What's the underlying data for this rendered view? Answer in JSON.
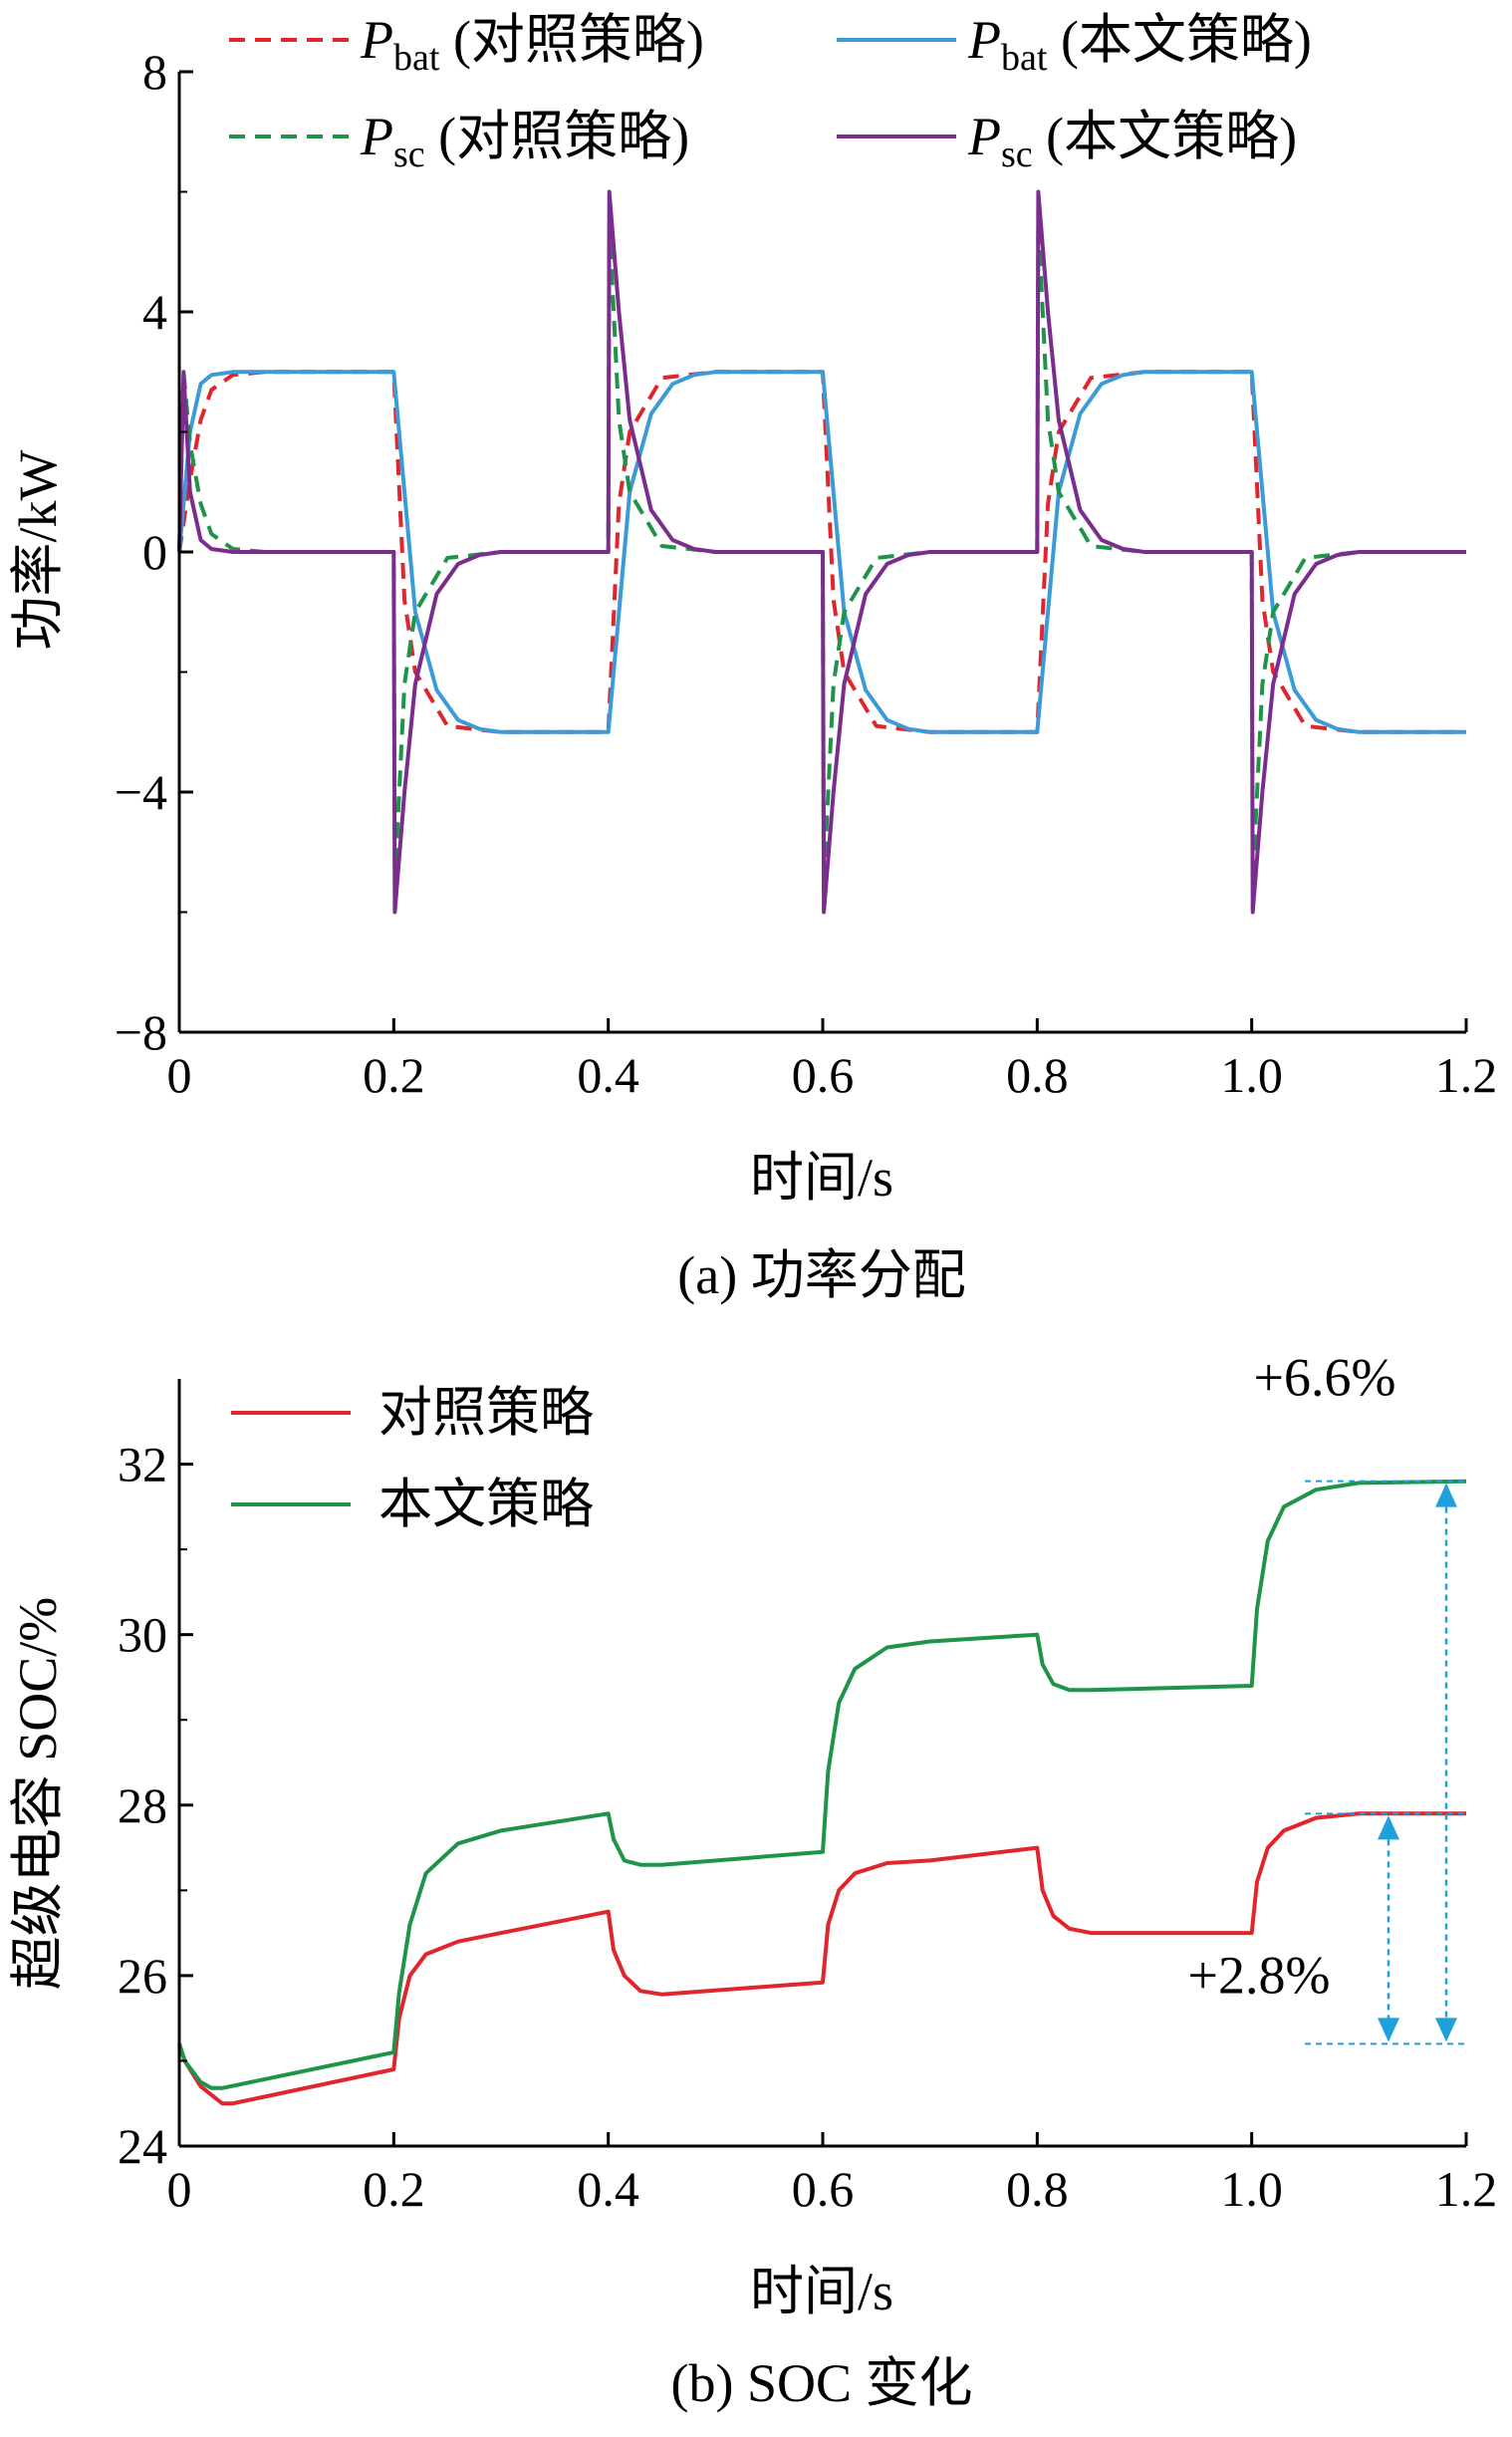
{
  "chart_data": [
    {
      "type": "line",
      "caption": "(a)  功率分配",
      "xlabel": "时间/s",
      "ylabel": "功率/kW",
      "xlim": [
        0,
        1.2
      ],
      "ylim": [
        -8,
        8
      ],
      "xticks": [
        0,
        0.2,
        0.4,
        0.6,
        0.8,
        1.0,
        1.2
      ],
      "xtick_labels": [
        "0",
        "0.2",
        "0.4",
        "0.6",
        "0.8",
        "1.0",
        "1.2"
      ],
      "yticks": [
        -8,
        -4,
        0,
        4,
        8
      ],
      "ytick_labels": [
        "−8",
        "−4",
        "0",
        "4",
        "8"
      ],
      "legend_position": "top",
      "series": [
        {
          "name": "P_bat (对照策略)",
          "label_var": "P",
          "label_sub": "bat",
          "label_suffix": " (对照策略)",
          "color": "#e0262d",
          "dash": true,
          "x": [
            0,
            0.01,
            0.02,
            0.03,
            0.05,
            0.08,
            0.2,
            0.21,
            0.22,
            0.25,
            0.3,
            0.4,
            0.41,
            0.42,
            0.45,
            0.5,
            0.6,
            0.61,
            0.62,
            0.65,
            0.7,
            0.8,
            0.81,
            0.82,
            0.85,
            0.9,
            1.0,
            1.01,
            1.02,
            1.05,
            1.1,
            1.2
          ],
          "y": [
            0,
            1.2,
            2.2,
            2.7,
            2.95,
            3.0,
            3.0,
            -0.8,
            -2.0,
            -2.9,
            -3.0,
            -3.0,
            0.8,
            2.0,
            2.9,
            3.0,
            3.0,
            -0.8,
            -2.0,
            -2.9,
            -3.0,
            -3.0,
            0.8,
            2.0,
            2.9,
            3.0,
            3.0,
            -0.8,
            -2.0,
            -2.9,
            -3.0,
            -3.0
          ]
        },
        {
          "name": "P_bat (本文策略)",
          "label_var": "P",
          "label_sub": "bat",
          "label_suffix": " (本文策略)",
          "color": "#3c9bd6",
          "dash": false,
          "x": [
            0,
            0.01,
            0.02,
            0.03,
            0.05,
            0.08,
            0.2,
            0.22,
            0.24,
            0.26,
            0.28,
            0.3,
            0.4,
            0.42,
            0.44,
            0.46,
            0.48,
            0.5,
            0.6,
            0.62,
            0.64,
            0.66,
            0.68,
            0.7,
            0.8,
            0.82,
            0.84,
            0.86,
            0.88,
            0.9,
            1.0,
            1.02,
            1.04,
            1.06,
            1.08,
            1.1,
            1.2
          ],
          "y": [
            0,
            2.0,
            2.8,
            2.95,
            3.0,
            3.0,
            3.0,
            -1.0,
            -2.3,
            -2.8,
            -2.95,
            -3.0,
            -3.0,
            1.0,
            2.3,
            2.8,
            2.95,
            3.0,
            3.0,
            -1.0,
            -2.3,
            -2.8,
            -2.95,
            -3.0,
            -3.0,
            1.0,
            2.3,
            2.8,
            2.95,
            3.0,
            3.0,
            -1.0,
            -2.3,
            -2.8,
            -2.95,
            -3.0,
            -3.0
          ]
        },
        {
          "name": "P_sc (对照策略)",
          "label_var": "P",
          "label_sub": "sc",
          "label_suffix": " (对照策略)",
          "color": "#1f9448",
          "dash": true,
          "x": [
            0,
            0.004,
            0.01,
            0.02,
            0.03,
            0.05,
            0.08,
            0.2,
            0.201,
            0.21,
            0.22,
            0.25,
            0.3,
            0.4,
            0.401,
            0.41,
            0.42,
            0.45,
            0.5,
            0.6,
            0.601,
            0.61,
            0.62,
            0.65,
            0.7,
            0.8,
            0.801,
            0.81,
            0.82,
            0.85,
            0.9,
            1.0,
            1.001,
            1.01,
            1.02,
            1.05,
            1.1,
            1.2
          ],
          "y": [
            0,
            3.0,
            1.8,
            0.8,
            0.3,
            0.05,
            0,
            0,
            -5.5,
            -2.2,
            -1.0,
            -0.1,
            0,
            0,
            5.5,
            2.2,
            1.0,
            0.1,
            0,
            0,
            -5.5,
            -2.2,
            -1.0,
            -0.1,
            0,
            0,
            5.5,
            2.2,
            1.0,
            0.1,
            0,
            0,
            -5.5,
            -2.2,
            -1.0,
            -0.1,
            0,
            0
          ]
        },
        {
          "name": "P_sc (本文策略)",
          "label_var": "P",
          "label_sub": "sc",
          "label_suffix": " (本文策略)",
          "color": "#7b2d8e",
          "dash": false,
          "x": [
            0,
            0.004,
            0.01,
            0.02,
            0.03,
            0.05,
            0.08,
            0.2,
            0.201,
            0.21,
            0.22,
            0.24,
            0.26,
            0.28,
            0.3,
            0.4,
            0.401,
            0.41,
            0.42,
            0.44,
            0.46,
            0.48,
            0.5,
            0.6,
            0.601,
            0.61,
            0.62,
            0.64,
            0.66,
            0.68,
            0.7,
            0.8,
            0.801,
            0.81,
            0.82,
            0.84,
            0.86,
            0.88,
            0.9,
            1.0,
            1.001,
            1.01,
            1.02,
            1.04,
            1.06,
            1.08,
            1.1,
            1.2
          ],
          "y": [
            0,
            3.0,
            1.0,
            0.2,
            0.05,
            0,
            0,
            0,
            -6.0,
            -4.0,
            -2.2,
            -0.7,
            -0.2,
            -0.05,
            0,
            0,
            6.0,
            4.0,
            2.2,
            0.7,
            0.2,
            0.05,
            0,
            0,
            -6.0,
            -4.0,
            -2.2,
            -0.7,
            -0.2,
            -0.05,
            0,
            0,
            6.0,
            4.0,
            2.2,
            0.7,
            0.2,
            0.05,
            0,
            0,
            -6.0,
            -4.0,
            -2.2,
            -0.7,
            -0.2,
            -0.05,
            0,
            0
          ]
        }
      ]
    },
    {
      "type": "line",
      "caption": "(b)  SOC 变化",
      "xlabel": "时间/s",
      "ylabel": "超级电容 SOC/%",
      "xlim": [
        0,
        1.2
      ],
      "ylim": [
        24,
        33
      ],
      "xticks": [
        0,
        0.2,
        0.4,
        0.6,
        0.8,
        1.0,
        1.2
      ],
      "xtick_labels": [
        "0",
        "0.2",
        "0.4",
        "0.6",
        "0.8",
        "1.0",
        "1.2"
      ],
      "yticks": [
        24,
        26,
        28,
        30,
        32
      ],
      "ytick_labels": [
        "24",
        "26",
        "28",
        "30",
        "32"
      ],
      "legend_position": "top-left",
      "series": [
        {
          "name": "对照策略",
          "color": "#e0262d",
          "x": [
            0,
            0.005,
            0.02,
            0.04,
            0.05,
            0.2,
            0.2,
            0.205,
            0.215,
            0.23,
            0.26,
            0.3,
            0.4,
            0.4,
            0.405,
            0.415,
            0.43,
            0.45,
            0.6,
            0.6,
            0.605,
            0.615,
            0.63,
            0.66,
            0.7,
            0.8,
            0.8,
            0.805,
            0.815,
            0.83,
            0.85,
            1.0,
            1.0,
            1.005,
            1.015,
            1.03,
            1.06,
            1.1,
            1.2
          ],
          "y": [
            25.2,
            25.0,
            24.7,
            24.5,
            24.5,
            24.9,
            24.9,
            25.5,
            26.0,
            26.25,
            26.4,
            26.5,
            26.75,
            26.75,
            26.3,
            26.0,
            25.82,
            25.78,
            25.92,
            25.92,
            26.6,
            27.0,
            27.2,
            27.32,
            27.35,
            27.5,
            27.5,
            27.0,
            26.7,
            26.55,
            26.5,
            26.5,
            26.5,
            27.1,
            27.5,
            27.7,
            27.85,
            27.9,
            27.9
          ]
        },
        {
          "name": "本文策略",
          "color": "#1f9448",
          "x": [
            0,
            0.005,
            0.02,
            0.03,
            0.04,
            0.2,
            0.2,
            0.205,
            0.215,
            0.23,
            0.26,
            0.3,
            0.4,
            0.4,
            0.405,
            0.415,
            0.43,
            0.45,
            0.6,
            0.6,
            0.605,
            0.615,
            0.63,
            0.66,
            0.7,
            0.8,
            0.8,
            0.805,
            0.815,
            0.83,
            0.85,
            1.0,
            1.0,
            1.005,
            1.015,
            1.03,
            1.06,
            1.1,
            1.2
          ],
          "y": [
            25.2,
            25.0,
            24.75,
            24.68,
            24.68,
            25.1,
            25.1,
            25.8,
            26.6,
            27.2,
            27.55,
            27.7,
            27.9,
            27.9,
            27.6,
            27.35,
            27.3,
            27.3,
            27.45,
            27.45,
            28.4,
            29.2,
            29.6,
            29.85,
            29.92,
            30.0,
            30.0,
            29.65,
            29.42,
            29.35,
            29.35,
            29.4,
            29.4,
            30.3,
            31.1,
            31.5,
            31.7,
            31.78,
            31.8
          ]
        }
      ],
      "annotations": [
        {
          "text": "+6.6%",
          "from_y": 25.2,
          "to_y": 31.8,
          "color": "#1ea0db"
        },
        {
          "text": "+2.8%",
          "from_y": 25.2,
          "to_y": 27.9,
          "color": "#1ea0db"
        }
      ]
    }
  ]
}
